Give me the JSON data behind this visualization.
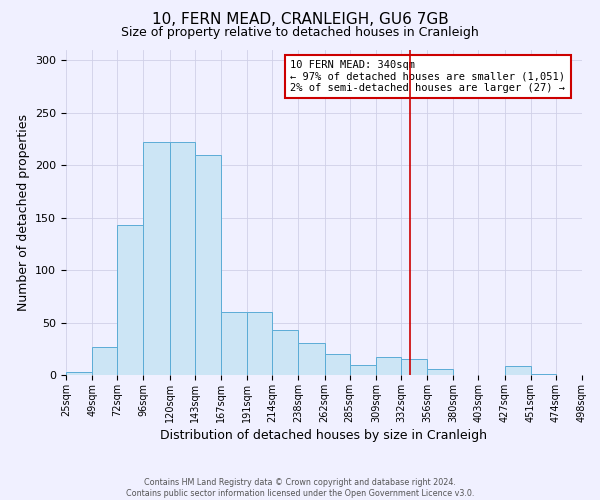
{
  "title": "10, FERN MEAD, CRANLEIGH, GU6 7GB",
  "subtitle": "Size of property relative to detached houses in Cranleigh",
  "xlabel": "Distribution of detached houses by size in Cranleigh",
  "ylabel": "Number of detached properties",
  "footer_line1": "Contains HM Land Registry data © Crown copyright and database right 2024.",
  "footer_line2": "Contains public sector information licensed under the Open Government Licence v3.0.",
  "bin_labels": [
    "25sqm",
    "49sqm",
    "72sqm",
    "96sqm",
    "120sqm",
    "143sqm",
    "167sqm",
    "191sqm",
    "214sqm",
    "238sqm",
    "262sqm",
    "285sqm",
    "309sqm",
    "332sqm",
    "356sqm",
    "380sqm",
    "403sqm",
    "427sqm",
    "451sqm",
    "474sqm",
    "498sqm"
  ],
  "bar_values": [
    3,
    27,
    143,
    222,
    222,
    210,
    60,
    60,
    43,
    31,
    20,
    10,
    17,
    15,
    6,
    0,
    0,
    9,
    1,
    0
  ],
  "bin_edges": [
    25,
    49,
    72,
    96,
    120,
    143,
    167,
    191,
    214,
    238,
    262,
    285,
    309,
    332,
    356,
    380,
    403,
    427,
    451,
    474,
    498
  ],
  "bar_color": "#cce5f5",
  "bar_edge_color": "#5bacd6",
  "vline_x": 340,
  "vline_color": "#cc0000",
  "annotation_line1": "10 FERN MEAD: 340sqm",
  "annotation_line2": "← 97% of detached houses are smaller (1,051)",
  "annotation_line3": "2% of semi-detached houses are larger (27) →",
  "annotation_box_color": "#cc0000",
  "annotation_text_color": "black",
  "ylim": [
    0,
    310
  ],
  "yticks": [
    0,
    50,
    100,
    150,
    200,
    250,
    300
  ],
  "background_color": "#f0f0ff",
  "grid_color": "#d0d0e8",
  "title_fontsize": 11,
  "subtitle_fontsize": 9,
  "axis_label_fontsize": 9,
  "tick_fontsize": 8,
  "xtick_fontsize": 7
}
